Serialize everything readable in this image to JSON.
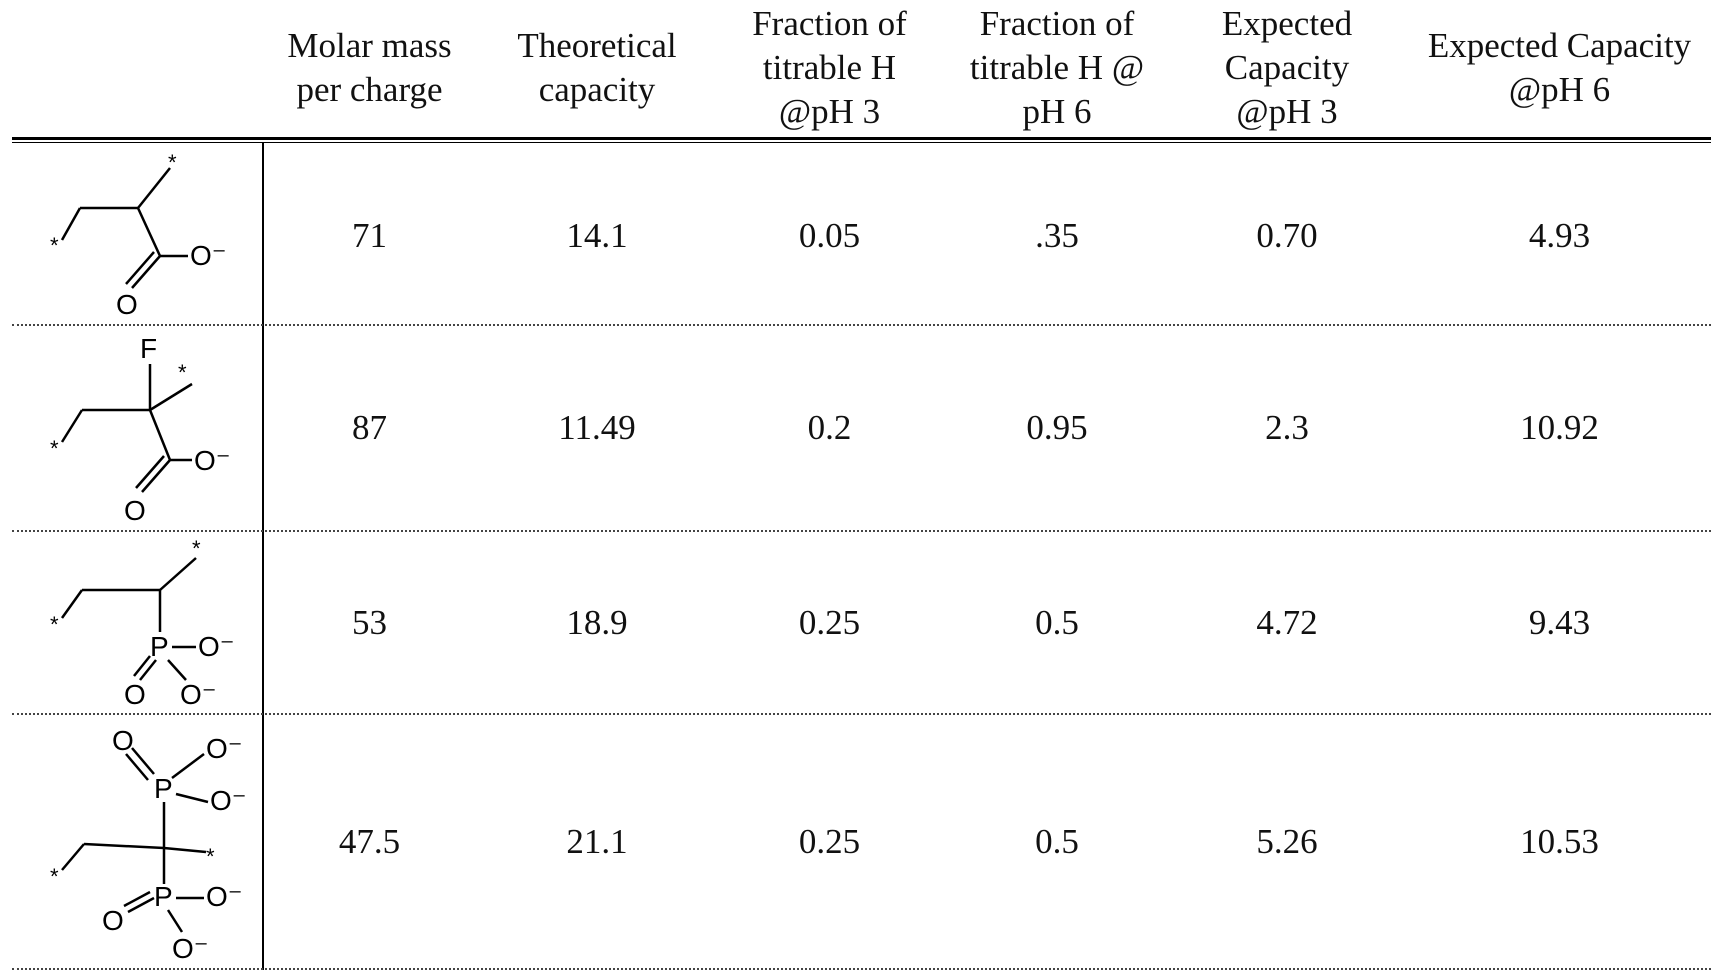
{
  "table": {
    "headers": [
      "",
      "Molar mass\nper charge",
      "Theoretical\ncapacity",
      "Fraction of\ntitrable H\n@pH 3",
      "Fraction of\ntitrable H @\npH 6",
      "Expected\nCapacity\n@pH 3",
      "Expected Capacity\n@pH 6"
    ],
    "rows": [
      {
        "structure": "poly-acrylate-unit",
        "molar_mass": "71",
        "theoretical": "14.1",
        "frac_ph3": "0.05",
        "frac_ph6": ".35",
        "cap_ph3": "0.70",
        "cap_ph6": "4.93"
      },
      {
        "structure": "poly-fluoroacrylate-unit",
        "molar_mass": "87",
        "theoretical": "11.49",
        "frac_ph3": "0.2",
        "frac_ph6": "0.95",
        "cap_ph3": "2.3",
        "cap_ph6": "10.92"
      },
      {
        "structure": "poly-vinylphosphonate-unit",
        "molar_mass": "53",
        "theoretical": "18.9",
        "frac_ph3": "0.25",
        "frac_ph6": "0.5",
        "cap_ph3": "4.72",
        "cap_ph6": "9.43"
      },
      {
        "structure": "poly-vinylidene-bisphosphonate-unit",
        "molar_mass": "47.5",
        "theoretical": "21.1",
        "frac_ph3": "0.25",
        "frac_ph6": "0.5",
        "cap_ph3": "5.26",
        "cap_ph6": "10.53"
      }
    ]
  },
  "structure_labels": {
    "star": "*",
    "o_minus": "O⁻",
    "o": "O",
    "f": "F",
    "p": "P"
  }
}
